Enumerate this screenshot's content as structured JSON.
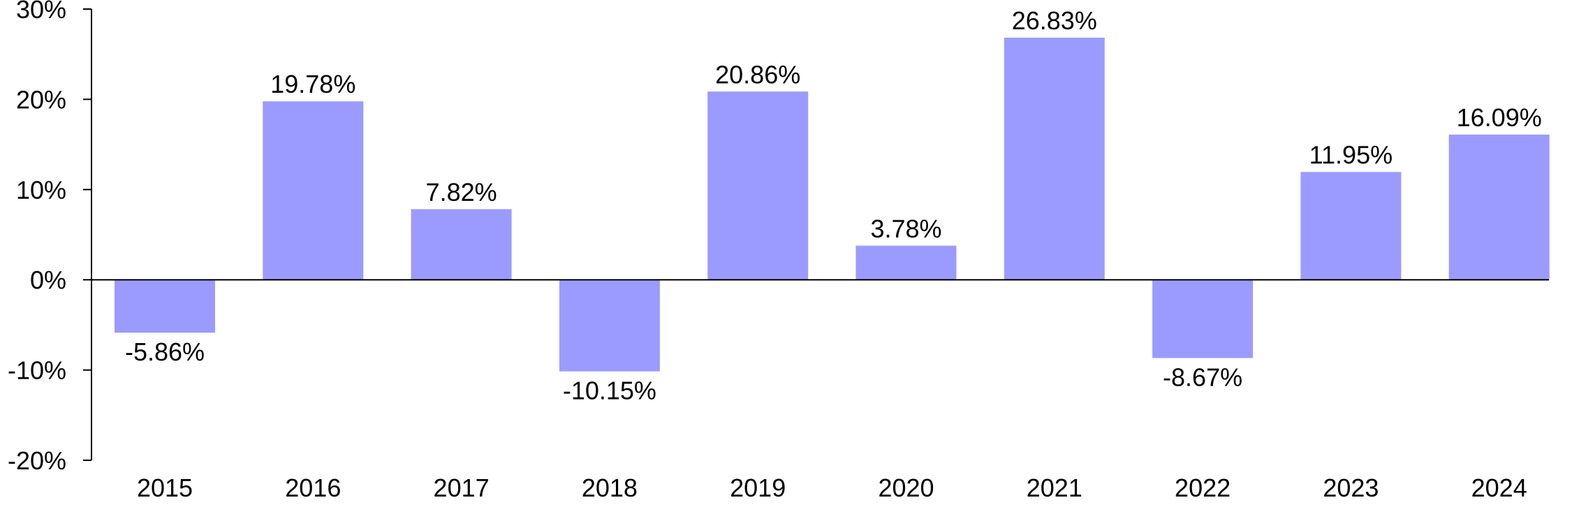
{
  "chart_data": {
    "type": "bar",
    "title": "",
    "xlabel": "",
    "ylabel": "",
    "categories": [
      "2015",
      "2016",
      "2017",
      "2018",
      "2019",
      "2020",
      "2021",
      "2022",
      "2023",
      "2024"
    ],
    "values": [
      -5.86,
      19.78,
      7.82,
      -10.15,
      20.86,
      3.78,
      26.83,
      -8.67,
      11.95,
      16.09
    ],
    "data_labels": [
      "-5.86%",
      "19.78%",
      "7.82%",
      "-10.15%",
      "20.86%",
      "3.78%",
      "26.83%",
      "-8.67%",
      "11.95%",
      "16.09%"
    ],
    "ylim": [
      -20,
      30
    ],
    "yticks": [
      30,
      20,
      10,
      0,
      -10,
      -20
    ],
    "ytick_labels": [
      "30%",
      "20%",
      "10%",
      "0%",
      "-10%",
      "-20%"
    ],
    "grid": false,
    "legend": "none",
    "bar_color": "#9b9bff",
    "axis_color": "#000000"
  }
}
